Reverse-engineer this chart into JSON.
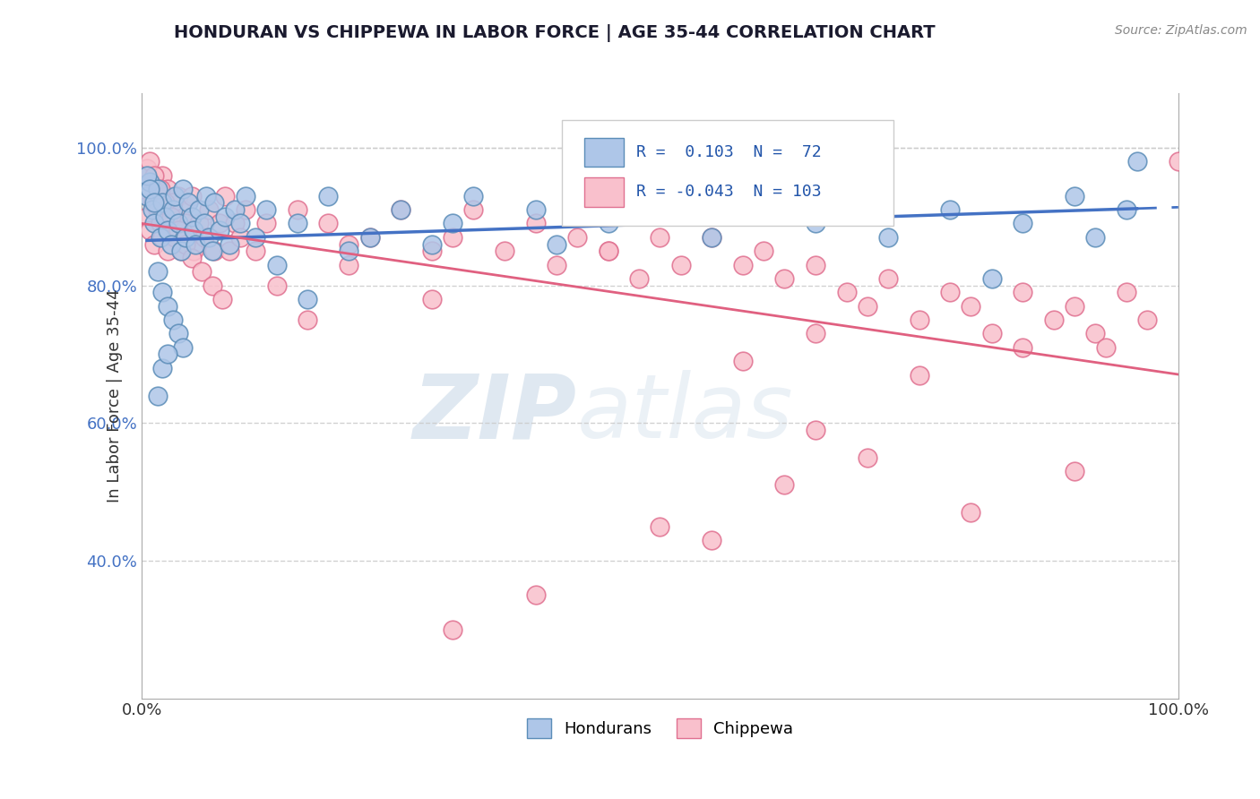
{
  "title": "HONDURAN VS CHIPPEWA IN LABOR FORCE | AGE 35-44 CORRELATION CHART",
  "source_text": "Source: ZipAtlas.com",
  "ylabel": "In Labor Force | Age 35-44",
  "legend_label_1": "Hondurans",
  "legend_label_2": "Chippewa",
  "r1": 0.103,
  "n1": 72,
  "r2": -0.043,
  "n2": 103,
  "xlim": [
    0.0,
    1.0
  ],
  "ylim": [
    0.2,
    1.08
  ],
  "yticks": [
    0.4,
    0.6,
    0.8,
    1.0
  ],
  "ytick_labels": [
    "40.0%",
    "60.0%",
    "80.0%",
    "100.0%"
  ],
  "xticks": [
    0.0,
    1.0
  ],
  "xtick_labels": [
    "0.0%",
    "100.0%"
  ],
  "color_blue_fill": "#AEC6E8",
  "color_blue_edge": "#5B8DB8",
  "color_pink_fill": "#F9C0CC",
  "color_pink_edge": "#E07090",
  "color_blue_line": "#4472C4",
  "color_pink_line": "#E06080",
  "background_color": "#FFFFFF",
  "watermark_color": "#C8D8E8",
  "honduran_x": [
    0.005,
    0.008,
    0.01,
    0.012,
    0.015,
    0.018,
    0.02,
    0.022,
    0.025,
    0.028,
    0.03,
    0.032,
    0.035,
    0.038,
    0.04,
    0.042,
    0.045,
    0.048,
    0.05,
    0.052,
    0.055,
    0.06,
    0.062,
    0.065,
    0.068,
    0.07,
    0.075,
    0.08,
    0.085,
    0.09,
    0.095,
    0.1,
    0.11,
    0.12,
    0.13,
    0.15,
    0.16,
    0.18,
    0.2,
    0.22,
    0.25,
    0.28,
    0.3,
    0.32,
    0.38,
    0.4,
    0.45,
    0.52,
    0.55,
    0.58,
    0.65,
    0.7,
    0.72,
    0.78,
    0.82,
    0.85,
    0.9,
    0.92,
    0.95,
    0.96,
    0.015,
    0.02,
    0.025,
    0.03,
    0.035,
    0.04,
    0.015,
    0.02,
    0.025,
    0.005,
    0.008,
    0.012
  ],
  "honduran_y": [
    0.93,
    0.95,
    0.91,
    0.89,
    0.94,
    0.87,
    0.92,
    0.9,
    0.88,
    0.86,
    0.91,
    0.93,
    0.89,
    0.85,
    0.94,
    0.87,
    0.92,
    0.9,
    0.88,
    0.86,
    0.91,
    0.89,
    0.93,
    0.87,
    0.85,
    0.92,
    0.88,
    0.9,
    0.86,
    0.91,
    0.89,
    0.93,
    0.87,
    0.91,
    0.83,
    0.89,
    0.78,
    0.93,
    0.85,
    0.87,
    0.91,
    0.86,
    0.89,
    0.93,
    0.91,
    0.86,
    0.89,
    0.93,
    0.87,
    0.91,
    0.89,
    0.93,
    0.87,
    0.91,
    0.81,
    0.89,
    0.93,
    0.87,
    0.91,
    0.98,
    0.82,
    0.79,
    0.77,
    0.75,
    0.73,
    0.71,
    0.64,
    0.68,
    0.7,
    0.96,
    0.94,
    0.92
  ],
  "chippewa_x": [
    0.0,
    0.005,
    0.008,
    0.01,
    0.012,
    0.015,
    0.018,
    0.02,
    0.022,
    0.025,
    0.028,
    0.03,
    0.032,
    0.035,
    0.038,
    0.04,
    0.042,
    0.045,
    0.048,
    0.05,
    0.055,
    0.06,
    0.065,
    0.07,
    0.075,
    0.08,
    0.085,
    0.09,
    0.095,
    0.1,
    0.11,
    0.12,
    0.13,
    0.15,
    0.16,
    0.18,
    0.2,
    0.22,
    0.25,
    0.28,
    0.3,
    0.32,
    0.35,
    0.38,
    0.4,
    0.42,
    0.45,
    0.48,
    0.5,
    0.52,
    0.55,
    0.58,
    0.6,
    0.62,
    0.65,
    0.68,
    0.7,
    0.72,
    0.75,
    0.78,
    0.8,
    0.82,
    0.85,
    0.88,
    0.9,
    0.92,
    0.93,
    0.95,
    0.97,
    1.0,
    0.005,
    0.01,
    0.015,
    0.02,
    0.025,
    0.03,
    0.008,
    0.012,
    0.018,
    0.022,
    0.028,
    0.035,
    0.042,
    0.048,
    0.058,
    0.068,
    0.078,
    0.45,
    0.58,
    0.65,
    0.75,
    0.85,
    0.38,
    0.5,
    0.62,
    0.7,
    0.8,
    0.9,
    0.55,
    0.65,
    0.3,
    0.28,
    0.2
  ],
  "chippewa_y": [
    0.94,
    0.9,
    0.88,
    0.92,
    0.86,
    0.91,
    0.89,
    0.87,
    0.93,
    0.85,
    0.91,
    0.89,
    0.87,
    0.93,
    0.85,
    0.91,
    0.89,
    0.87,
    0.93,
    0.85,
    0.89,
    0.87,
    0.91,
    0.85,
    0.89,
    0.93,
    0.85,
    0.89,
    0.87,
    0.91,
    0.85,
    0.89,
    0.8,
    0.91,
    0.75,
    0.89,
    0.83,
    0.87,
    0.91,
    0.85,
    0.87,
    0.91,
    0.85,
    0.89,
    0.83,
    0.87,
    0.85,
    0.81,
    0.87,
    0.83,
    0.87,
    0.83,
    0.85,
    0.81,
    0.83,
    0.79,
    0.77,
    0.81,
    0.75,
    0.79,
    0.77,
    0.73,
    0.79,
    0.75,
    0.77,
    0.73,
    0.71,
    0.79,
    0.75,
    0.98,
    0.97,
    0.95,
    0.93,
    0.96,
    0.94,
    0.92,
    0.98,
    0.96,
    0.94,
    0.92,
    0.9,
    0.88,
    0.86,
    0.84,
    0.82,
    0.8,
    0.78,
    0.85,
    0.69,
    0.73,
    0.67,
    0.71,
    0.35,
    0.45,
    0.51,
    0.55,
    0.47,
    0.53,
    0.43,
    0.59,
    0.3,
    0.78,
    0.86
  ]
}
